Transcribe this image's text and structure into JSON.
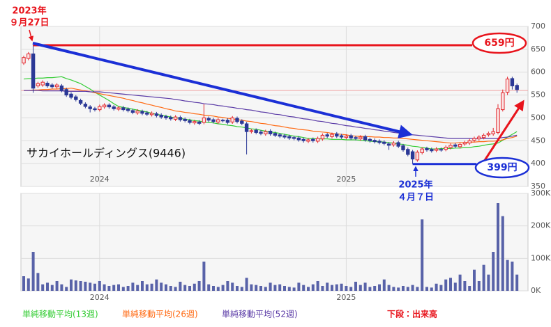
{
  "chart_data": [
    {
      "type": "candlestick",
      "title": "サカイホールディングス(9446)",
      "categories": [
        null,
        null,
        null,
        null,
        null,
        null,
        null,
        null,
        null,
        null,
        null,
        null,
        null,
        null,
        null,
        null,
        "2024",
        null,
        null,
        null,
        null,
        null,
        null,
        null,
        null,
        null,
        null,
        null,
        null,
        null,
        null,
        null,
        null,
        null,
        null,
        null,
        null,
        null,
        null,
        null,
        null,
        null,
        null,
        null,
        null,
        null,
        null,
        null,
        null,
        null,
        null,
        null,
        null,
        null,
        null,
        null,
        null,
        null,
        null,
        null,
        null,
        null,
        null,
        null,
        null,
        null,
        null,
        null,
        "2025",
        null,
        null,
        null,
        null,
        null,
        null,
        null,
        null,
        null,
        null,
        null,
        null,
        null,
        null,
        null,
        null,
        null,
        null,
        null,
        null,
        null,
        null,
        null,
        null,
        null,
        null,
        null,
        null,
        null,
        null,
        null,
        null,
        null,
        null,
        null,
        null
      ],
      "open": [
        620,
        630,
        640,
        570,
        572,
        576,
        572,
        568,
        570,
        562,
        552,
        546,
        538,
        530,
        524,
        520,
        518,
        524,
        528,
        524,
        519,
        522,
        519,
        516,
        511,
        514,
        511,
        507,
        509,
        506,
        503,
        501,
        497,
        501,
        497,
        494,
        489,
        491,
        490,
        499,
        496,
        491,
        495,
        495,
        491,
        499,
        493,
        487,
        470,
        473,
        469,
        465,
        471,
        466,
        463,
        461,
        459,
        457,
        456,
        453,
        449,
        453,
        449,
        454,
        463,
        459,
        465,
        461,
        457,
        461,
        457,
        454,
        459,
        453,
        451,
        449,
        447,
        443,
        441,
        446,
        439,
        431,
        426,
        408,
        424,
        433,
        431,
        429,
        431,
        431,
        435,
        441,
        437,
        443,
        445,
        451,
        454,
        457,
        463,
        465,
        468,
        518,
        556,
        586,
        571
      ],
      "high": [
        636,
        644,
        659,
        579,
        582,
        580,
        576,
        576,
        574,
        566,
        556,
        550,
        542,
        534,
        528,
        524,
        529,
        532,
        532,
        528,
        526,
        526,
        523,
        520,
        519,
        518,
        515,
        514,
        513,
        510,
        507,
        505,
        506,
        505,
        501,
        498,
        496,
        495,
        530,
        503,
        500,
        500,
        498,
        499,
        504,
        503,
        497,
        491,
        476,
        477,
        473,
        474,
        475,
        470,
        467,
        465,
        463,
        461,
        460,
        457,
        456,
        457,
        459,
        466,
        467,
        468,
        469,
        465,
        464,
        465,
        461,
        462,
        463,
        457,
        455,
        453,
        451,
        447,
        449,
        450,
        443,
        435,
        430,
        429,
        436,
        437,
        435,
        436,
        435,
        440,
        444,
        445,
        446,
        450,
        454,
        459,
        462,
        466,
        470,
        478,
        530,
        562,
        590,
        590,
        575
      ],
      "low": [
        616,
        626,
        555,
        566,
        568,
        566,
        564,
        564,
        556,
        546,
        541,
        536,
        528,
        521,
        512,
        514,
        514,
        520,
        520,
        516,
        515,
        514,
        512,
        508,
        507,
        506,
        504,
        503,
        501,
        498,
        496,
        494,
        493,
        492,
        490,
        486,
        485,
        484,
        486,
        491,
        488,
        487,
        490,
        486,
        487,
        488,
        484,
        420,
        466,
        464,
        462,
        461,
        461,
        458,
        456,
        454,
        452,
        451,
        448,
        446,
        445,
        446,
        445,
        450,
        456,
        455,
        456,
        454,
        453,
        452,
        451,
        450,
        448,
        446,
        444,
        442,
        440,
        430,
        437,
        434,
        426,
        416,
        399,
        404,
        420,
        426,
        424,
        425,
        426,
        427,
        431,
        434,
        433,
        439,
        441,
        447,
        450,
        453,
        459,
        461,
        464,
        514,
        550,
        562,
        555
      ],
      "close": [
        632,
        640,
        565,
        575,
        578,
        570,
        568,
        572,
        560,
        550,
        545,
        540,
        532,
        525,
        520,
        518,
        525,
        528,
        524,
        520,
        522,
        518,
        516,
        512,
        515,
        510,
        508,
        510,
        505,
        502,
        500,
        498,
        502,
        496,
        494,
        490,
        492,
        488,
        500,
        495,
        492,
        496,
        494,
        490,
        500,
        492,
        488,
        470,
        472,
        468,
        466,
        470,
        465,
        462,
        460,
        458,
        456,
        455,
        452,
        450,
        452,
        450,
        455,
        462,
        460,
        464,
        460,
        458,
        460,
        456,
        455,
        458,
        452,
        450,
        448,
        446,
        444,
        440,
        445,
        438,
        430,
        420,
        410,
        425,
        432,
        430,
        428,
        432,
        430,
        436,
        440,
        438,
        442,
        446,
        450,
        455,
        458,
        462,
        466,
        470,
        520,
        555,
        585,
        570,
        562
      ],
      "up_color": "#e3262c",
      "down_color": "#2b3896",
      "series": [
        {
          "name": "単純移動平均(13週)",
          "color": "#33cc33",
          "values": [
            585,
            586,
            586,
            587,
            587,
            588,
            588,
            589,
            590,
            586,
            583,
            579,
            575,
            569,
            563,
            556,
            550,
            544,
            538,
            531,
            525,
            523,
            521,
            519,
            517,
            515,
            513,
            510,
            508,
            506,
            504,
            502,
            500,
            499,
            497,
            496,
            494,
            493,
            491,
            490,
            489,
            487,
            486,
            484,
            483,
            481,
            480,
            478,
            476,
            475,
            473,
            471,
            469,
            468,
            466,
            464,
            462,
            460,
            459,
            457,
            455,
            455,
            454,
            454,
            454,
            453,
            453,
            453,
            452,
            452,
            452,
            451,
            450,
            449,
            448,
            448,
            447,
            446,
            445,
            443,
            442,
            440,
            438,
            437,
            435,
            434,
            432,
            432,
            433,
            433,
            433,
            434,
            434,
            435,
            435,
            437,
            438,
            440,
            442,
            443,
            445,
            451,
            458,
            464,
            470
          ]
        },
        {
          "name": "単純移動平均(26週)",
          "color": "#ff6a13",
          "values": [
            560,
            560,
            561,
            561,
            562,
            562,
            563,
            563,
            564,
            564,
            565,
            563,
            561,
            559,
            557,
            555,
            553,
            551,
            549,
            547,
            545,
            543,
            540,
            538,
            535,
            533,
            530,
            528,
            525,
            523,
            520,
            518,
            515,
            514,
            512,
            511,
            509,
            508,
            506,
            505,
            504,
            502,
            501,
            499,
            498,
            496,
            495,
            493,
            492,
            490,
            488,
            487,
            485,
            483,
            482,
            480,
            478,
            477,
            475,
            474,
            473,
            471,
            470,
            469,
            468,
            466,
            465,
            464,
            463,
            461,
            460,
            460,
            459,
            459,
            458,
            458,
            457,
            457,
            456,
            456,
            455,
            454,
            453,
            452,
            451,
            450,
            449,
            448,
            447,
            446,
            445,
            445,
            446,
            446,
            447,
            447,
            448,
            448,
            449,
            449,
            450,
            452,
            455,
            457,
            460
          ]
        },
        {
          "name": "単純移動平均(52週)",
          "color": "#5a3aa6",
          "values": [
            560,
            560,
            560,
            560,
            559,
            559,
            559,
            559,
            559,
            558,
            558,
            558,
            558,
            558,
            557,
            557,
            557,
            556,
            555,
            554,
            553,
            552,
            551,
            550,
            549,
            548,
            547,
            546,
            545,
            544,
            543,
            542,
            540,
            539,
            537,
            536,
            534,
            533,
            531,
            530,
            529,
            527,
            526,
            524,
            523,
            521,
            520,
            518,
            517,
            515,
            513,
            512,
            510,
            508,
            507,
            505,
            503,
            502,
            500,
            498,
            497,
            495,
            493,
            492,
            490,
            488,
            487,
            485,
            483,
            482,
            480,
            479,
            477,
            476,
            474,
            473,
            471,
            470,
            468,
            467,
            465,
            464,
            463,
            462,
            461,
            460,
            459,
            458,
            457,
            456,
            455,
            455,
            455,
            455,
            455,
            455,
            455,
            455,
            455,
            455,
            455,
            457,
            458,
            460,
            462
          ]
        }
      ],
      "price_line": 560,
      "ylim": [
        350,
        700
      ],
      "yticks": [
        350,
        400,
        450,
        500,
        550,
        600,
        650,
        700
      ],
      "grid": true,
      "annotations": [
        {
          "text": "659円",
          "value": 659,
          "color": "#e8141c"
        },
        {
          "text": "399円",
          "value": 399,
          "color": "#1b2fd6"
        }
      ],
      "peak_date": [
        "2023年",
        "９月27日"
      ],
      "low_date": [
        "2025年",
        "４月７日"
      ]
    },
    {
      "type": "bar",
      "title": "下段：出来高",
      "color": "#5862a8",
      "categories": [
        null,
        null,
        null,
        null,
        null,
        null,
        null,
        null,
        null,
        null,
        null,
        null,
        null,
        null,
        null,
        null,
        "2024",
        null,
        null,
        null,
        null,
        null,
        null,
        null,
        null,
        null,
        null,
        null,
        null,
        null,
        null,
        null,
        null,
        null,
        null,
        null,
        null,
        null,
        null,
        null,
        null,
        null,
        null,
        null,
        null,
        null,
        null,
        null,
        null,
        null,
        null,
        null,
        null,
        null,
        null,
        null,
        null,
        null,
        null,
        null,
        null,
        null,
        null,
        null,
        null,
        null,
        null,
        null,
        "2025",
        null,
        null,
        null,
        null,
        null,
        null,
        null,
        null,
        null,
        null,
        null,
        null,
        null,
        null,
        null,
        null,
        null,
        null,
        null,
        null,
        null,
        null,
        null,
        null,
        null,
        null,
        null,
        null,
        null,
        null,
        null,
        null,
        null,
        null,
        null,
        null
      ],
      "values": [
        45000,
        38000,
        120000,
        55000,
        20000,
        25000,
        18000,
        30000,
        20000,
        12000,
        35000,
        32000,
        30000,
        28000,
        25000,
        22000,
        30000,
        20000,
        15000,
        18000,
        20000,
        12000,
        15000,
        25000,
        18000,
        30000,
        20000,
        22000,
        35000,
        25000,
        20000,
        15000,
        12000,
        28000,
        18000,
        15000,
        22000,
        30000,
        90000,
        20000,
        15000,
        12000,
        18000,
        30000,
        25000,
        15000,
        12000,
        40000,
        20000,
        18000,
        15000,
        12000,
        25000,
        18000,
        20000,
        15000,
        12000,
        10000,
        25000,
        18000,
        12000,
        20000,
        30000,
        15000,
        25000,
        18000,
        20000,
        22000,
        15000,
        12000,
        28000,
        18000,
        25000,
        12000,
        15000,
        20000,
        35000,
        18000,
        12000,
        10000,
        15000,
        12000,
        18000,
        12000,
        220000,
        12000,
        10000,
        22000,
        18000,
        35000,
        40000,
        25000,
        50000,
        30000,
        15000,
        65000,
        30000,
        80000,
        50000,
        120000,
        270000,
        230000,
        95000,
        90000,
        50000
      ],
      "ylim": [
        0,
        300000
      ],
      "yticks": [
        {
          "value": 0,
          "label": "0K"
        },
        {
          "value": 100000,
          "label": "100K"
        },
        {
          "value": 200000,
          "label": "200K"
        },
        {
          "value": 300000,
          "label": "300K"
        }
      ]
    }
  ]
}
